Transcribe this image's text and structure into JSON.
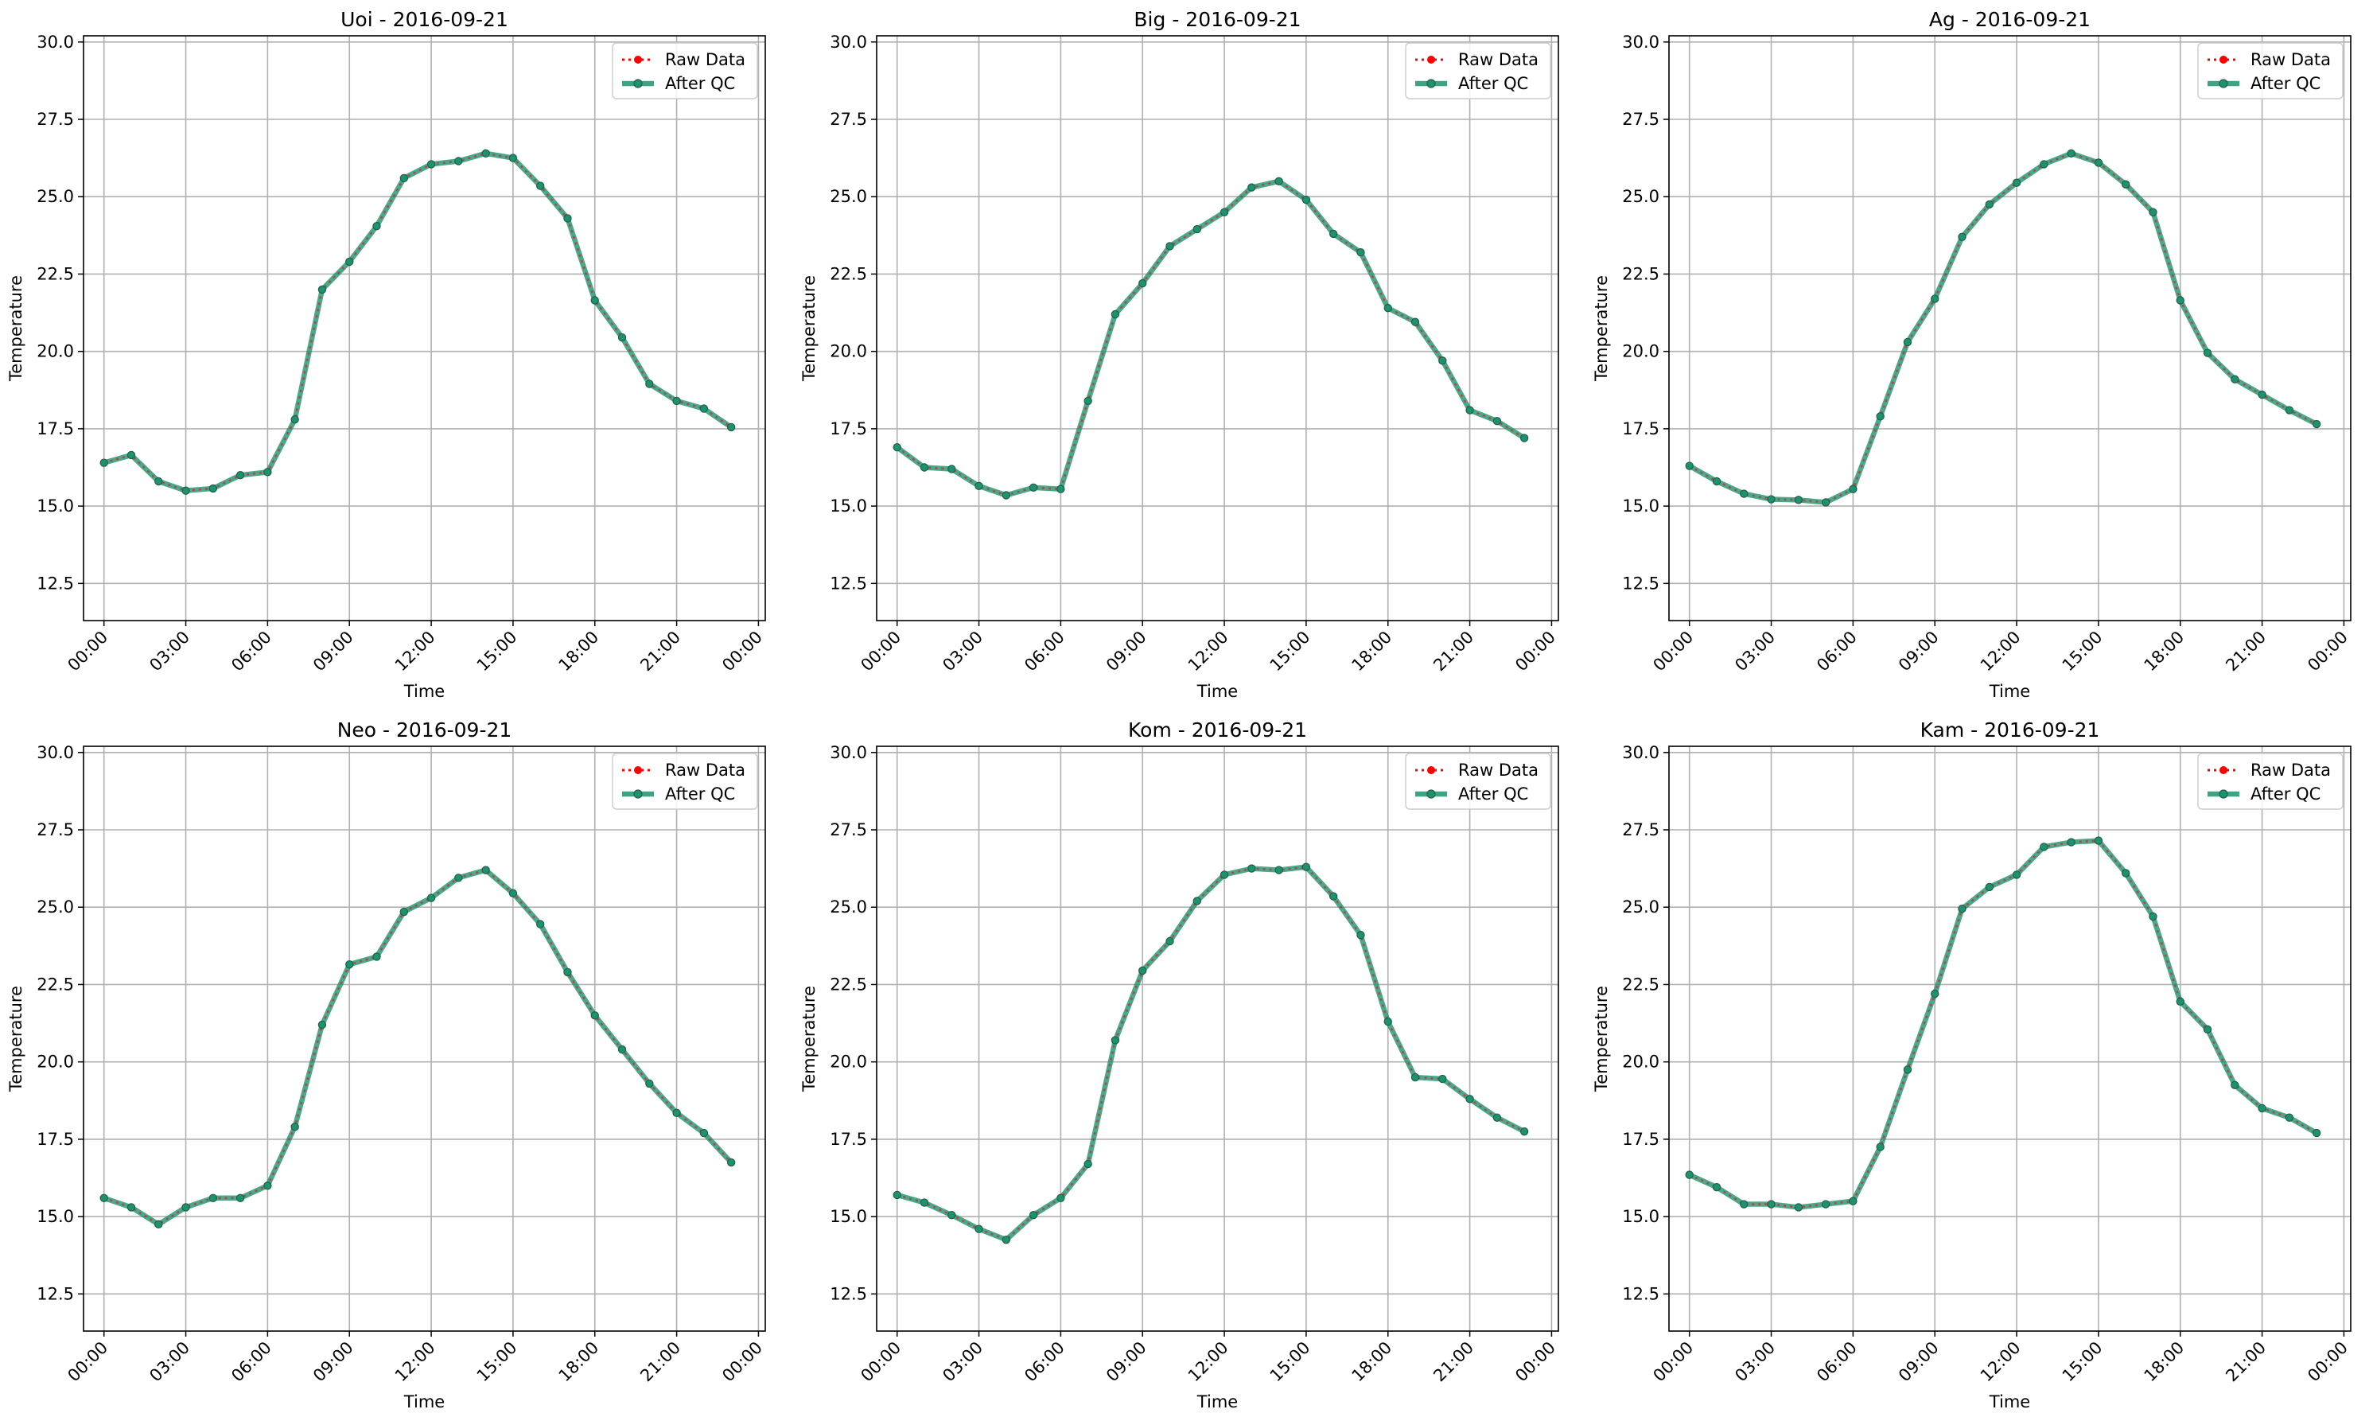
{
  "figure": {
    "x_tick_labels": [
      "00:00",
      "03:00",
      "06:00",
      "09:00",
      "12:00",
      "15:00",
      "18:00",
      "21:00",
      "00:00"
    ],
    "y_tick_labels": [
      "12.5",
      "15.0",
      "17.5",
      "20.0",
      "22.5",
      "25.0",
      "27.5",
      "30.0"
    ],
    "legend": {
      "raw_label": "Raw Data",
      "qc_label": "After QC",
      "placement": "upper right"
    },
    "colors": {
      "raw": "#ff0000",
      "qc": "#1a936f",
      "qc_edge": "#2b5a4a",
      "grid": "#b0b0b0"
    }
  },
  "chart_data": [
    {
      "type": "line",
      "title": "Uoi - 2016-09-21",
      "xlabel": "Time",
      "ylabel": "Temperature",
      "ylim": [
        11.3,
        30.2
      ],
      "x_hours": [
        0,
        1,
        2,
        3,
        4,
        5,
        6,
        7,
        8,
        9,
        10,
        11,
        12,
        13,
        14,
        15,
        16,
        17,
        18,
        19,
        20,
        21,
        22,
        23
      ],
      "series": [
        {
          "name": "Raw Data",
          "values": [
            16.4,
            16.65,
            15.8,
            15.5,
            15.57,
            16.0,
            16.1,
            17.8,
            22.0,
            22.9,
            24.05,
            25.6,
            26.05,
            26.15,
            26.4,
            26.25,
            25.35,
            24.3,
            21.65,
            20.45,
            18.95,
            18.4,
            18.15,
            17.55
          ]
        },
        {
          "name": "After QC",
          "values": [
            16.4,
            16.65,
            15.8,
            15.5,
            15.57,
            16.0,
            16.1,
            17.8,
            22.0,
            22.9,
            24.05,
            25.6,
            26.05,
            26.15,
            26.4,
            26.25,
            25.35,
            24.3,
            21.65,
            20.45,
            18.95,
            18.4,
            18.15,
            17.55
          ]
        }
      ]
    },
    {
      "type": "line",
      "title": "Big - 2016-09-21",
      "xlabel": "Time",
      "ylabel": "Temperature",
      "ylim": [
        11.3,
        30.2
      ],
      "x_hours": [
        0,
        1,
        2,
        3,
        4,
        5,
        6,
        7,
        8,
        9,
        10,
        11,
        12,
        13,
        14,
        15,
        16,
        17,
        18,
        19,
        20,
        21,
        22,
        23
      ],
      "series": [
        {
          "name": "Raw Data",
          "values": [
            16.9,
            16.25,
            16.2,
            15.65,
            15.35,
            15.6,
            15.55,
            18.4,
            21.2,
            22.2,
            23.4,
            23.95,
            24.5,
            25.3,
            25.5,
            24.9,
            23.8,
            23.2,
            21.4,
            20.95,
            19.7,
            18.1,
            17.75,
            17.2
          ]
        },
        {
          "name": "After QC",
          "values": [
            16.9,
            16.25,
            16.2,
            15.65,
            15.35,
            15.6,
            15.55,
            18.4,
            21.2,
            22.2,
            23.4,
            23.95,
            24.5,
            25.3,
            25.5,
            24.9,
            23.8,
            23.2,
            21.4,
            20.95,
            19.7,
            18.1,
            17.75,
            17.2
          ]
        }
      ]
    },
    {
      "type": "line",
      "title": "Ag - 2016-09-21",
      "xlabel": "Time",
      "ylabel": "Temperature",
      "ylim": [
        11.3,
        30.2
      ],
      "x_hours": [
        0,
        1,
        2,
        3,
        4,
        5,
        6,
        7,
        8,
        9,
        10,
        11,
        12,
        13,
        14,
        15,
        16,
        17,
        18,
        19,
        20,
        21,
        22,
        23
      ],
      "series": [
        {
          "name": "Raw Data",
          "values": [
            16.3,
            15.8,
            15.4,
            15.22,
            15.2,
            15.12,
            15.55,
            17.9,
            20.3,
            21.7,
            23.7,
            24.75,
            25.45,
            26.05,
            26.4,
            26.1,
            25.4,
            24.5,
            21.65,
            19.95,
            19.1,
            18.6,
            18.1,
            17.65
          ]
        },
        {
          "name": "After QC",
          "values": [
            16.3,
            15.8,
            15.4,
            15.22,
            15.2,
            15.12,
            15.55,
            17.9,
            20.3,
            21.7,
            23.7,
            24.75,
            25.45,
            26.05,
            26.4,
            26.1,
            25.4,
            24.5,
            21.65,
            19.95,
            19.1,
            18.6,
            18.1,
            17.65
          ]
        }
      ]
    },
    {
      "type": "line",
      "title": "Neo - 2016-09-21",
      "xlabel": "Time",
      "ylabel": "Temperature",
      "ylim": [
        11.3,
        30.2
      ],
      "x_hours": [
        0,
        1,
        2,
        3,
        4,
        5,
        6,
        7,
        8,
        9,
        10,
        11,
        12,
        13,
        14,
        15,
        16,
        17,
        18,
        19,
        20,
        21,
        22,
        23
      ],
      "series": [
        {
          "name": "Raw Data",
          "values": [
            15.6,
            15.3,
            14.75,
            15.3,
            15.6,
            15.6,
            16.0,
            17.9,
            21.2,
            23.15,
            23.4,
            24.85,
            25.3,
            25.95,
            26.2,
            25.45,
            24.45,
            22.9,
            21.5,
            20.4,
            19.3,
            18.35,
            17.7,
            16.75
          ]
        },
        {
          "name": "After QC",
          "values": [
            15.6,
            15.3,
            14.75,
            15.3,
            15.6,
            15.6,
            16.0,
            17.9,
            21.2,
            23.15,
            23.4,
            24.85,
            25.3,
            25.95,
            26.2,
            25.45,
            24.45,
            22.9,
            21.5,
            20.4,
            19.3,
            18.35,
            17.7,
            16.75
          ]
        }
      ]
    },
    {
      "type": "line",
      "title": "Kom - 2016-09-21",
      "xlabel": "Time",
      "ylabel": "Temperature",
      "ylim": [
        11.3,
        30.2
      ],
      "x_hours": [
        0,
        1,
        2,
        3,
        4,
        5,
        6,
        7,
        8,
        9,
        10,
        11,
        12,
        13,
        14,
        15,
        16,
        17,
        18,
        19,
        20,
        21,
        22,
        23
      ],
      "series": [
        {
          "name": "Raw Data",
          "values": [
            15.7,
            15.45,
            15.05,
            14.6,
            14.25,
            15.05,
            15.6,
            16.7,
            20.7,
            22.95,
            23.9,
            25.2,
            26.05,
            26.25,
            26.2,
            26.3,
            25.35,
            24.1,
            21.3,
            19.5,
            19.45,
            18.8,
            18.2,
            17.75
          ]
        },
        {
          "name": "After QC",
          "values": [
            15.7,
            15.45,
            15.05,
            14.6,
            14.25,
            15.05,
            15.6,
            16.7,
            20.7,
            22.95,
            23.9,
            25.2,
            26.05,
            26.25,
            26.2,
            26.3,
            25.35,
            24.1,
            21.3,
            19.5,
            19.45,
            18.8,
            18.2,
            17.75
          ]
        }
      ]
    },
    {
      "type": "line",
      "title": "Kam - 2016-09-21",
      "xlabel": "Time",
      "ylabel": "Temperature",
      "ylim": [
        11.3,
        30.2
      ],
      "x_hours": [
        0,
        1,
        2,
        3,
        4,
        5,
        6,
        7,
        8,
        9,
        10,
        11,
        12,
        13,
        14,
        15,
        16,
        17,
        18,
        19,
        20,
        21,
        22,
        23
      ],
      "series": [
        {
          "name": "Raw Data",
          "values": [
            16.35,
            15.95,
            15.4,
            15.4,
            15.3,
            15.4,
            15.5,
            17.25,
            19.75,
            22.2,
            24.95,
            25.65,
            26.05,
            26.95,
            27.1,
            27.15,
            26.1,
            24.7,
            21.95,
            21.05,
            19.25,
            18.5,
            18.2,
            17.7
          ]
        },
        {
          "name": "After QC",
          "values": [
            16.35,
            15.95,
            15.4,
            15.4,
            15.3,
            15.4,
            15.5,
            17.25,
            19.75,
            22.2,
            24.95,
            25.65,
            26.05,
            26.95,
            27.1,
            27.15,
            26.1,
            24.7,
            21.95,
            21.05,
            19.25,
            18.5,
            18.2,
            17.7
          ]
        }
      ]
    }
  ]
}
